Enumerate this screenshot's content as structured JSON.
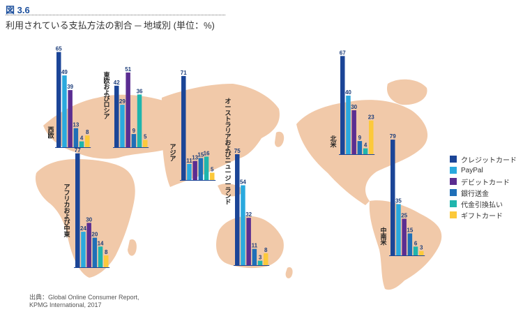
{
  "figure": {
    "label": "図 3.6",
    "title": "利用されている支払方法の割合 ─ 地域別 (単位：%)"
  },
  "colors": {
    "ocean": "#ffffff",
    "land": "#f1c9a9",
    "title_accent": "#1c4f9c",
    "value_text": "#1c3d7a",
    "series": [
      "#1b4597",
      "#2aa9de",
      "#5b2d91",
      "#1f6fb8",
      "#1fb5ad",
      "#fcc93b"
    ]
  },
  "chart_data": {
    "type": "bar",
    "title": "利用されている支払方法の割合 ─ 地域別 (単位：%)",
    "unit": "%",
    "ylim": [
      0,
      80
    ],
    "legend_position": "right",
    "series_names": [
      "クレジットカード",
      "PayPal",
      "デビットカード",
      "銀行送金",
      "代金引換払い",
      "ギフトカード"
    ],
    "groups": [
      {
        "region": "西欧",
        "values": [
          65,
          49,
          39,
          13,
          4,
          8
        ]
      },
      {
        "region": "東欧およびロシア",
        "values": [
          42,
          29,
          51,
          9,
          36,
          5
        ]
      },
      {
        "region": "アジア",
        "values": [
          71,
          11,
          13,
          15,
          16,
          5
        ]
      },
      {
        "region": "アフリカおよび中東",
        "values": [
          77,
          24,
          30,
          20,
          14,
          8
        ]
      },
      {
        "region": "オーストラリアおよびニュージーランド",
        "values": [
          75,
          54,
          32,
          11,
          3,
          8
        ]
      },
      {
        "region": "北米",
        "values": [
          67,
          40,
          30,
          9,
          4,
          23
        ]
      },
      {
        "region": "中南米",
        "values": [
          79,
          35,
          25,
          15,
          6,
          3
        ]
      }
    ]
  },
  "source": {
    "line1": "出典：Global Online Consumer Report,",
    "line2": "KPMG International, 2017"
  }
}
